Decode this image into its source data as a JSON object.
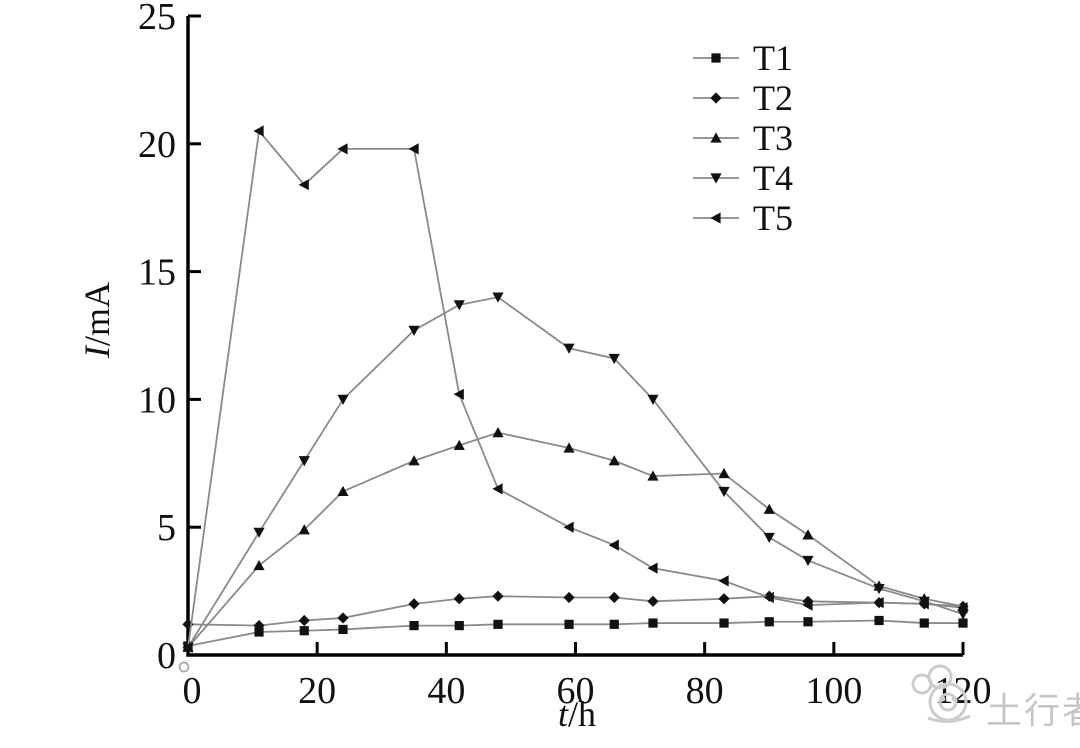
{
  "colors": {
    "background": "#ffffff",
    "axis": "#000000",
    "line": "#8a8a8a",
    "marker": "#111111",
    "watermark": "#c6c6c6"
  },
  "watermark": {
    "text": "土行者",
    "logo": "snail-logo"
  },
  "chart_data": {
    "type": "line",
    "title": "",
    "xlabel_italic": "t",
    "xlabel_rest": "/h",
    "ylabel_italic": "I",
    "ylabel_rest": "/mA",
    "xlim": [
      0,
      120
    ],
    "ylim": [
      0,
      25
    ],
    "x_ticks": [
      0,
      20,
      40,
      60,
      80,
      100,
      120
    ],
    "y_ticks": [
      0,
      5,
      10,
      15,
      20,
      25
    ],
    "grid": false,
    "legend_position": "upper-right-inside",
    "x": [
      0,
      11,
      18,
      24,
      35,
      42,
      48,
      59,
      66,
      72,
      83,
      90,
      96,
      107,
      114,
      120
    ],
    "series": [
      {
        "name": "T1",
        "marker": "square",
        "values": [
          0.35,
          0.9,
          0.95,
          1.0,
          1.15,
          1.15,
          1.2,
          1.2,
          1.2,
          1.25,
          1.25,
          1.3,
          1.3,
          1.35,
          1.25,
          1.25
        ]
      },
      {
        "name": "T2",
        "marker": "diamond",
        "values": [
          1.2,
          1.15,
          1.35,
          1.45,
          2.0,
          2.2,
          2.3,
          2.25,
          2.25,
          2.1,
          2.2,
          2.3,
          2.1,
          2.05,
          2.0,
          1.9
        ]
      },
      {
        "name": "T3",
        "marker": "triangle-up",
        "values": [
          0.3,
          3.5,
          4.9,
          6.4,
          7.6,
          8.2,
          8.7,
          8.1,
          7.6,
          7.0,
          7.1,
          5.7,
          4.7,
          2.7,
          2.2,
          1.9
        ]
      },
      {
        "name": "T4",
        "marker": "triangle-down",
        "values": [
          0.3,
          4.8,
          7.6,
          10.0,
          12.7,
          13.7,
          14.0,
          12.0,
          11.6,
          10.0,
          6.4,
          4.6,
          3.7,
          2.6,
          2.1,
          1.6
        ]
      },
      {
        "name": "T5",
        "marker": "triangle-left",
        "values": [
          0.3,
          20.5,
          18.4,
          19.8,
          19.8,
          10.2,
          6.5,
          5.0,
          4.3,
          3.4,
          2.9,
          2.25,
          1.95,
          2.05,
          2.0,
          1.85
        ]
      }
    ]
  }
}
